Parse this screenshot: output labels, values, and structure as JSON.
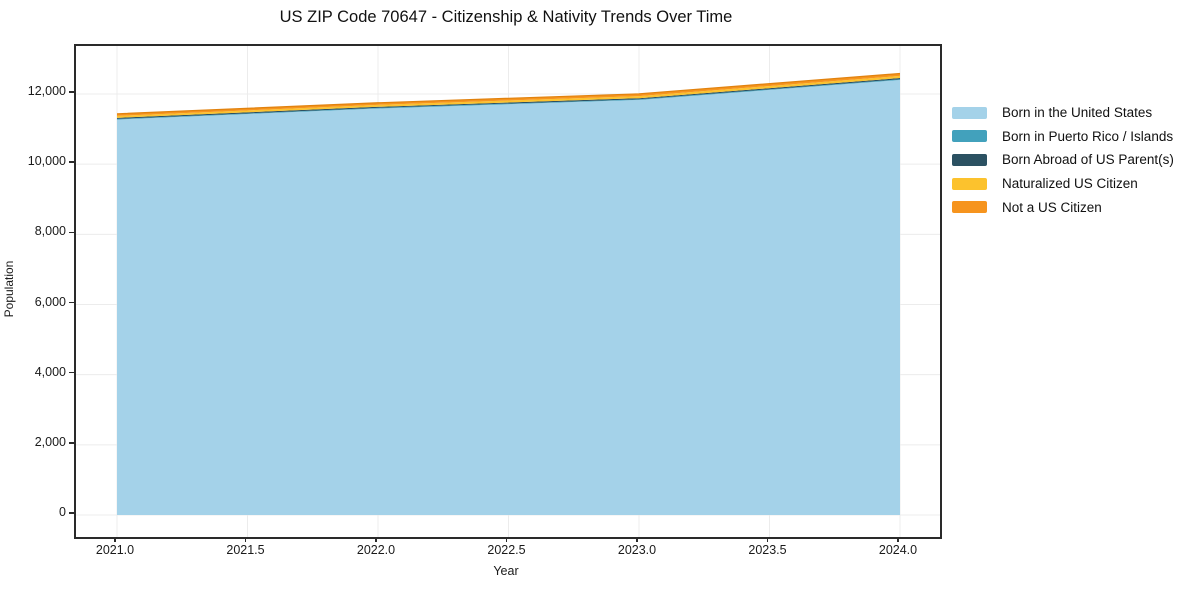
{
  "title": "US ZIP Code 70647 - Citizenship & Nativity Trends Over Time",
  "axes": {
    "x_label": "Year",
    "y_label": "Population",
    "x_tick_labels": [
      "2021.0",
      "2021.5",
      "2022.0",
      "2022.5",
      "2023.0",
      "2023.5",
      "2024.0"
    ],
    "y_tick_labels": [
      "0",
      "2,000",
      "4,000",
      "6,000",
      "8,000",
      "10,000",
      "12,000"
    ]
  },
  "chart_data": {
    "type": "area",
    "stacked": true,
    "title": "US ZIP Code 70647 - Citizenship & Nativity Trends Over Time",
    "xlabel": "Year",
    "ylabel": "Population",
    "x": [
      2021,
      2022,
      2023,
      2024
    ],
    "series": [
      {
        "name": "Born in the United States",
        "color": "#A4D2E9",
        "values": [
          11270,
          11585,
          11830,
          12400
        ]
      },
      {
        "name": "Born in Puerto Rico / Islands",
        "color": "#42A1BC",
        "values": [
          20,
          20,
          20,
          20
        ]
      },
      {
        "name": "Born Abroad of US Parent(s)",
        "color": "#2B5162",
        "values": [
          30,
          30,
          30,
          35
        ]
      },
      {
        "name": "Naturalized US Citizen",
        "color": "#FCC22D",
        "values": [
          55,
          55,
          60,
          60
        ]
      },
      {
        "name": "Not a US Citizen",
        "color": "#F6941E",
        "values": [
          60,
          60,
          65,
          70
        ]
      }
    ],
    "totals": [
      11435,
      11750,
      12005,
      12585
    ],
    "x_tick_values": [
      2021,
      2021.5,
      2022,
      2022.5,
      2023,
      2023.5,
      2024
    ],
    "y_tick_values": [
      0,
      2000,
      4000,
      6000,
      8000,
      10000,
      12000
    ],
    "xlim": [
      2021,
      2024
    ],
    "ylim": [
      0,
      13400
    ],
    "grid": true,
    "legend_position": "right-outside"
  },
  "colors": {
    "background": "#ffffff",
    "spine": "#2a2a2a",
    "grid": "#ececec",
    "text": "#1a1a1a",
    "stack_top_edge": "#E1820E"
  }
}
